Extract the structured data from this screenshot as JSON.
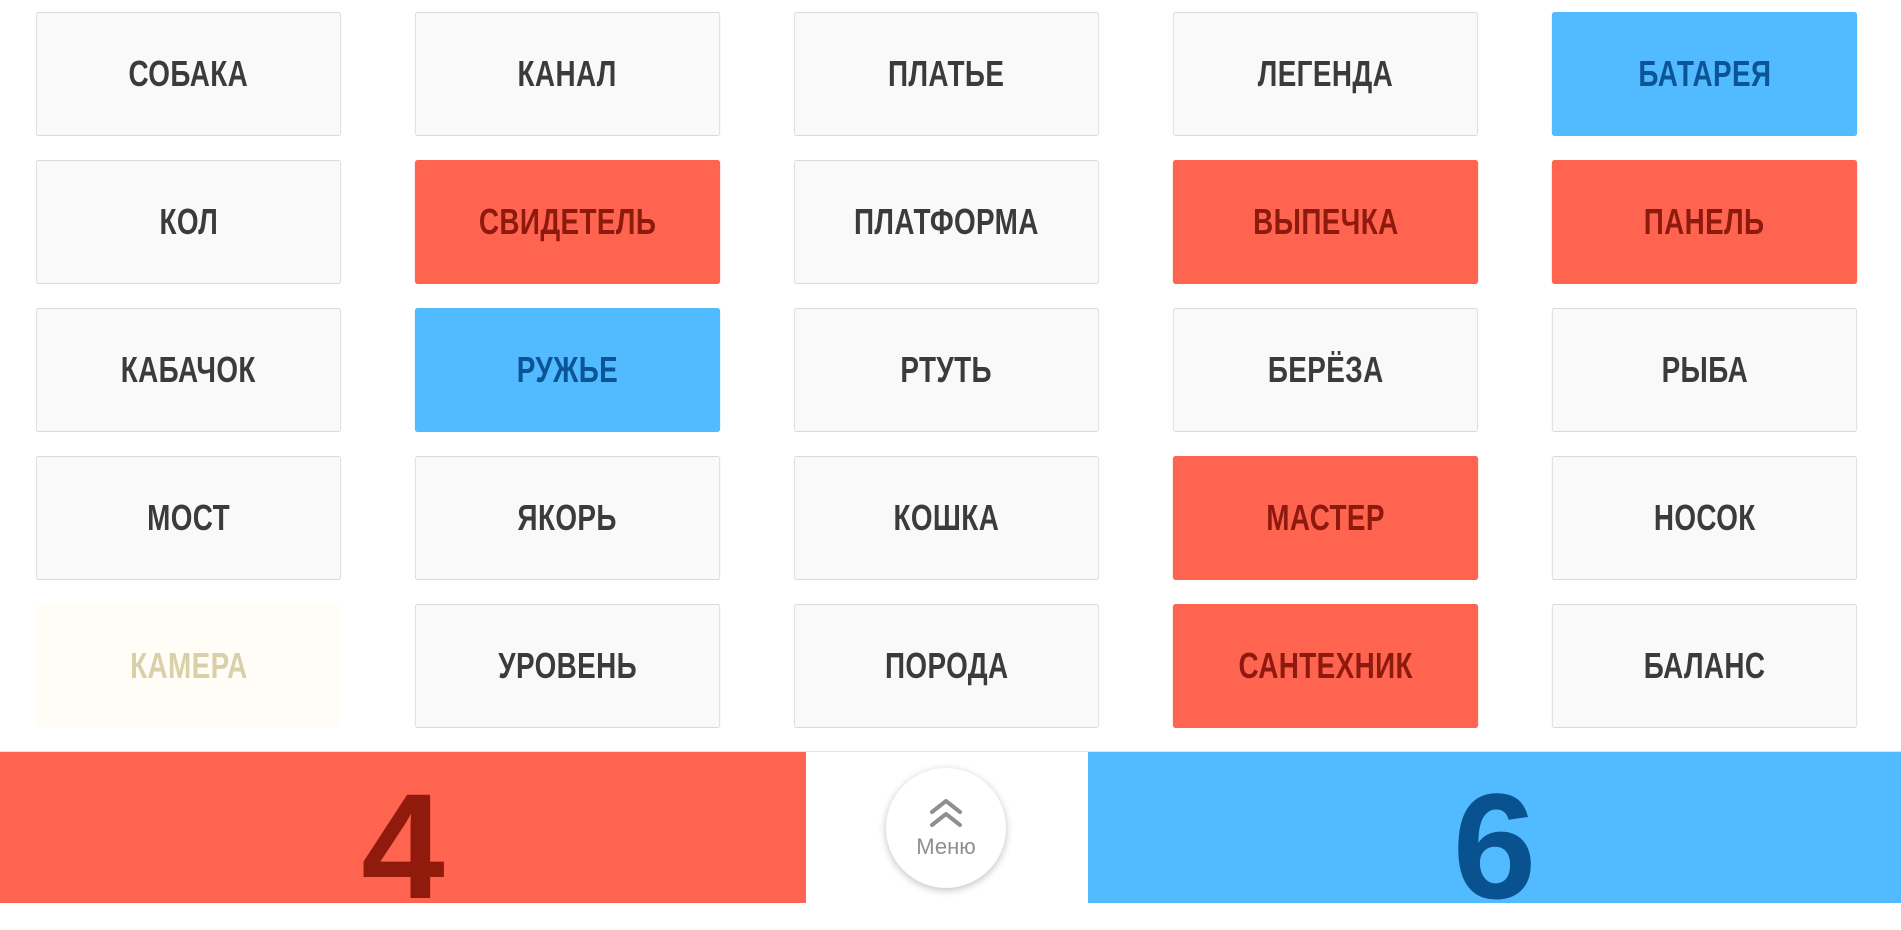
{
  "board": {
    "cards": [
      {
        "word": "СОБАКА",
        "team": "neutral"
      },
      {
        "word": "КАНАЛ",
        "team": "neutral"
      },
      {
        "word": "ПЛАТЬЕ",
        "team": "neutral"
      },
      {
        "word": "ЛЕГЕНДА",
        "team": "neutral"
      },
      {
        "word": "БАТАРЕЯ",
        "team": "blue"
      },
      {
        "word": "КОЛ",
        "team": "neutral"
      },
      {
        "word": "СВИДЕТЕЛЬ",
        "team": "red"
      },
      {
        "word": "ПЛАТФОРМА",
        "team": "neutral"
      },
      {
        "word": "ВЫПЕЧКА",
        "team": "red"
      },
      {
        "word": "ПАНЕЛЬ",
        "team": "red"
      },
      {
        "word": "КАБАЧОК",
        "team": "neutral"
      },
      {
        "word": "РУЖЬЕ",
        "team": "blue"
      },
      {
        "word": "РТУТЬ",
        "team": "neutral"
      },
      {
        "word": "БЕРЁЗА",
        "team": "neutral"
      },
      {
        "word": "РЫБА",
        "team": "neutral"
      },
      {
        "word": "МОСТ",
        "team": "neutral"
      },
      {
        "word": "ЯКОРЬ",
        "team": "neutral"
      },
      {
        "word": "КОШКА",
        "team": "neutral"
      },
      {
        "word": "МАСТЕР",
        "team": "red"
      },
      {
        "word": "НОСОК",
        "team": "neutral"
      },
      {
        "word": "КАМЕРА",
        "team": "assassin"
      },
      {
        "word": "УРОВЕНЬ",
        "team": "neutral"
      },
      {
        "word": "ПОРОДА",
        "team": "neutral"
      },
      {
        "word": "САНТЕХНИК",
        "team": "red"
      },
      {
        "word": "БАЛАНС",
        "team": "neutral"
      }
    ]
  },
  "score": {
    "red": "4",
    "blue": "6"
  },
  "menu": {
    "label": "Меню",
    "icon": "double-chevron-up-icon"
  },
  "colors": {
    "red_team": "#ff6450",
    "blue_team": "#52baff",
    "neutral_card": "#f9f9f9",
    "assassin_card": "#fffdf6"
  }
}
